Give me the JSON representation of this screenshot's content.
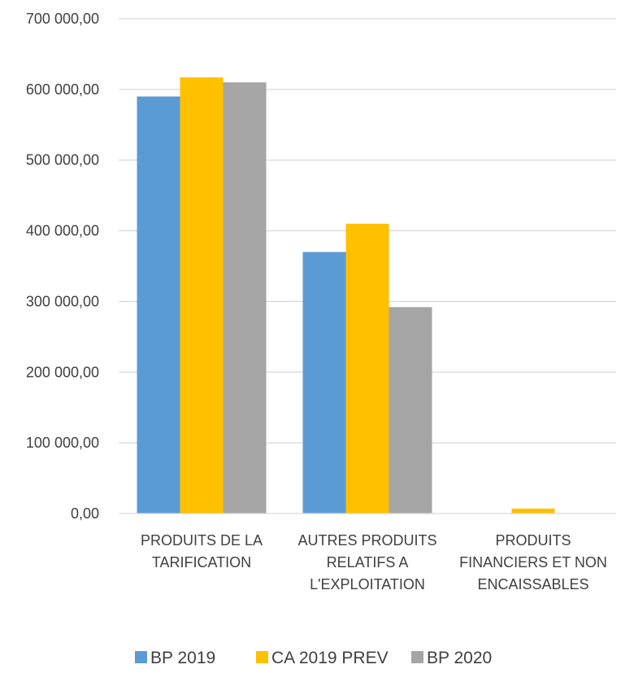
{
  "chart_data": {
    "type": "bar",
    "categories": [
      [
        "PRODUITS DE LA",
        "TARIFICATION"
      ],
      [
        "AUTRES PRODUITS",
        "RELATIFS A",
        "L'EXPLOITATION"
      ],
      [
        "PRODUITS",
        "FINANCIERS ET NON",
        "ENCAISSABLES"
      ]
    ],
    "series": [
      {
        "name": "BP 2019",
        "color": "#5B9BD5",
        "values": [
          590000,
          370000,
          0
        ]
      },
      {
        "name": "CA 2019 PREV",
        "color": "#FFC000",
        "values": [
          617000,
          410000,
          7000
        ]
      },
      {
        "name": "BP 2020",
        "color": "#A5A5A5",
        "values": [
          610000,
          292000,
          0
        ]
      }
    ],
    "ylim": [
      0,
      700000
    ],
    "ytick_labels": [
      "0,00",
      "100 000,00",
      "200 000,00",
      "300 000,00",
      "400 000,00",
      "500 000,00",
      "600 000,00",
      "700 000,00"
    ],
    "grid": true,
    "legend_position": "bottom",
    "title": "",
    "xlabel": "",
    "ylabel": ""
  }
}
